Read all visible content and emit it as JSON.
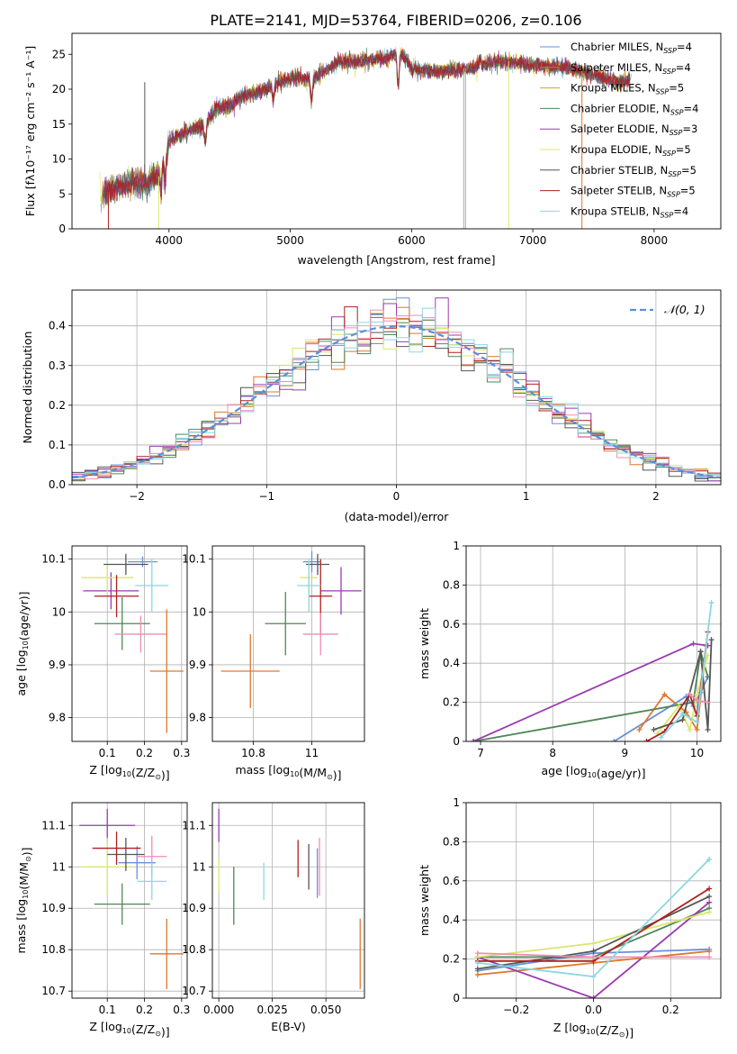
{
  "figure": {
    "title": "PLATE=2141, MJD=53764, FIBERID=0206, z=0.106"
  },
  "colors": [
    "#6a8fd8",
    "#e0772a",
    "#4f8657",
    "#9b3bb0",
    "#d8e86a",
    "#555555",
    "#b01f1f",
    "#f08cb4",
    "#8ad8e0"
  ],
  "chart_data": [
    {
      "id": "spectrum",
      "type": "line",
      "xlabel": "wavelength [Angstrom, rest frame]",
      "ylabel": "Flux [fλ10⁻¹⁷ erg cm⁻² s⁻¹ A⁻¹]",
      "xlim": [
        3200,
        8550
      ],
      "ylim": [
        0,
        28
      ],
      "xticks": [
        4000,
        5000,
        6000,
        7000,
        8000
      ],
      "yticks": [
        0,
        5,
        10,
        15,
        20,
        25
      ],
      "grid": false,
      "legend": {
        "position": "right",
        "entries": [
          {
            "base": "Chabrier MILES, N",
            "sub": "SSP",
            "tail": "=4",
            "color": "#6a8fd8"
          },
          {
            "base": "Salpeter MILES, N",
            "sub": "SSP",
            "tail": "=4",
            "color": "#e0772a"
          },
          {
            "base": "Kroupa MILES, N",
            "sub": "SSP",
            "tail": "=5",
            "color": "#d8a030"
          },
          {
            "base": "Chabrier ELODIE, N",
            "sub": "SSP",
            "tail": "=4",
            "color": "#4f8657"
          },
          {
            "base": "Salpeter ELODIE, N",
            "sub": "SSP",
            "tail": "=3",
            "color": "#9b3bb0"
          },
          {
            "base": "Kroupa ELODIE, N",
            "sub": "SSP",
            "tail": "=5",
            "color": "#d8e86a"
          },
          {
            "base": "Chabrier STELIB, N",
            "sub": "SSP",
            "tail": "=5",
            "color": "#555555"
          },
          {
            "base": "Salpeter STELIB, N",
            "sub": "SSP",
            "tail": "=5",
            "color": "#b01f1f"
          },
          {
            "base": "Kroupa STELIB, N",
            "sub": "SSP",
            "tail": "=4",
            "color": "#8ad8e0"
          }
        ]
      },
      "envelope": [
        [
          3430,
          4.5
        ],
        [
          3500,
          5.5
        ],
        [
          3600,
          6
        ],
        [
          3700,
          6.5
        ],
        [
          3800,
          6.5
        ],
        [
          3900,
          7.5
        ],
        [
          3950,
          10
        ],
        [
          4000,
          12.5
        ],
        [
          4100,
          13.5
        ],
        [
          4300,
          15
        ],
        [
          4400,
          17.5
        ],
        [
          4500,
          17.5
        ],
        [
          4600,
          19
        ],
        [
          4800,
          20
        ],
        [
          4900,
          21
        ],
        [
          5000,
          21.5
        ],
        [
          5200,
          21.5
        ],
        [
          5400,
          24
        ],
        [
          5600,
          24
        ],
        [
          5800,
          24.5
        ],
        [
          5900,
          25.5
        ],
        [
          6000,
          23
        ],
        [
          6200,
          22.5
        ],
        [
          6500,
          23
        ],
        [
          6700,
          24
        ],
        [
          7000,
          23.5
        ],
        [
          7300,
          23
        ],
        [
          7500,
          22
        ],
        [
          7700,
          21
        ],
        [
          7800,
          21.5
        ]
      ]
    },
    {
      "id": "residuals",
      "type": "histogram",
      "xlabel": "(data-model)/error",
      "ylabel": "Normed distribution",
      "xlim": [
        -2.5,
        2.5
      ],
      "ylim": [
        0,
        0.49
      ],
      "xticks": [
        -2,
        -1,
        0,
        1,
        2
      ],
      "xtick_labels": [
        "−2",
        "−1",
        "0",
        "1",
        "2"
      ],
      "yticks": [
        0,
        0.1,
        0.2,
        0.3,
        0.4
      ],
      "yticklabels": [
        "0.0",
        "0.1",
        "0.2",
        "0.3",
        "0.4"
      ],
      "bin_width": 0.1,
      "grid": true,
      "legend": {
        "position": "top-right",
        "entry": "𝒩(0, 1)"
      }
    },
    {
      "id": "age_vs_Z",
      "type": "errorbar",
      "xlabel": "Z [log10(Z/Z⊙)]",
      "ylabel": "age  [log10(age/yr)]",
      "xlim": [
        0.005,
        0.315
      ],
      "ylim": [
        9.755,
        10.125
      ],
      "xticks": [
        0.1,
        0.2,
        0.3
      ],
      "yticks": [
        9.8,
        9.9,
        10.0,
        10.1
      ],
      "points": [
        {
          "x": 0.195,
          "y": 10.095,
          "xerr": 0.04,
          "yerr": 0.01,
          "color": "#6a8fd8"
        },
        {
          "x": 0.26,
          "y": 9.888,
          "xerr": 0.045,
          "yerr": 0.117,
          "color": "#e0772a"
        },
        {
          "x": 0.14,
          "y": 9.978,
          "xerr": 0.075,
          "yerr": 0.05,
          "color": "#4f8657"
        },
        {
          "x": 0.11,
          "y": 10.04,
          "xerr": 0.075,
          "yerr": 0.035,
          "color": "#9b3bb0"
        },
        {
          "x": 0.1,
          "y": 10.065,
          "xerr": 0.07,
          "yerr": 0.03,
          "color": "#d8e86a"
        },
        {
          "x": 0.15,
          "y": 10.09,
          "xerr": 0.06,
          "yerr": 0.02,
          "color": "#555555"
        },
        {
          "x": 0.125,
          "y": 10.03,
          "xerr": 0.06,
          "yerr": 0.04,
          "color": "#b01f1f"
        },
        {
          "x": 0.19,
          "y": 9.958,
          "xerr": 0.07,
          "yerr": 0.035,
          "color": "#f08cb4"
        },
        {
          "x": 0.22,
          "y": 10.05,
          "xerr": 0.045,
          "yerr": 0.05,
          "color": "#8ad8e0"
        }
      ]
    },
    {
      "id": "age_vs_mass",
      "type": "errorbar",
      "xlabel": "mass [log10(M/M⊙)]",
      "ylabel": "",
      "xlim": [
        10.66,
        11.18
      ],
      "ylim": [
        9.755,
        10.125
      ],
      "xticks": [
        10.8,
        11.0
      ],
      "yticks": [
        9.8,
        9.9,
        10.0,
        10.1
      ],
      "points": [
        {
          "x": 11.0,
          "y": 10.095,
          "xerr": 0.03,
          "yerr": 0.02,
          "color": "#6a8fd8"
        },
        {
          "x": 10.79,
          "y": 9.888,
          "xerr": 0.1,
          "yerr": 0.07,
          "color": "#e0772a"
        },
        {
          "x": 10.91,
          "y": 9.978,
          "xerr": 0.07,
          "yerr": 0.06,
          "color": "#4f8657"
        },
        {
          "x": 11.1,
          "y": 10.04,
          "xerr": 0.07,
          "yerr": 0.045,
          "color": "#9b3bb0"
        },
        {
          "x": 10.99,
          "y": 10.065,
          "xerr": 0.03,
          "yerr": 0.03,
          "color": "#d8e86a"
        },
        {
          "x": 11.02,
          "y": 10.09,
          "xerr": 0.04,
          "yerr": 0.02,
          "color": "#555555"
        },
        {
          "x": 11.03,
          "y": 10.03,
          "xerr": 0.04,
          "yerr": 0.07,
          "color": "#b01f1f"
        },
        {
          "x": 11.03,
          "y": 9.958,
          "xerr": 0.06,
          "yerr": 0.04,
          "color": "#f08cb4"
        },
        {
          "x": 10.99,
          "y": 10.05,
          "xerr": 0.04,
          "yerr": 0.05,
          "color": "#8ad8e0"
        }
      ]
    },
    {
      "id": "mass_weight_vs_age",
      "type": "line",
      "xlabel": "age  [log10(age/yr)]",
      "ylabel": "mass weight",
      "xlim": [
        6.8,
        10.33
      ],
      "ylim": [
        0,
        1
      ],
      "xticks": [
        7,
        8,
        9,
        10
      ],
      "yticks": [
        0.0,
        0.2,
        0.4,
        0.6,
        0.8,
        1.0
      ],
      "series": [
        {
          "color": "#6a8fd8",
          "x": [
            8.85,
            9.85,
            9.95,
            10.05,
            10.15
          ],
          "y": [
            0.0,
            0.23,
            0.18,
            0.25,
            0.33
          ]
        },
        {
          "color": "#e0772a",
          "x": [
            9.2,
            9.55,
            9.85,
            10.0,
            10.13
          ],
          "y": [
            0.06,
            0.24,
            0.15,
            0.06,
            0.49
          ]
        },
        {
          "color": "#4f8657",
          "x": [
            6.9,
            9.95,
            10.05,
            10.15
          ],
          "y": [
            0.0,
            0.2,
            0.46,
            0.33
          ]
        },
        {
          "color": "#9b3bb0",
          "x": [
            6.9,
            9.95,
            10.15
          ],
          "y": [
            0.0,
            0.5,
            0.49
          ]
        },
        {
          "color": "#d8e86a",
          "x": [
            9.45,
            9.75,
            9.9,
            10.0,
            10.15
          ],
          "y": [
            0.04,
            0.18,
            0.06,
            0.24,
            0.44
          ]
        },
        {
          "color": "#555555",
          "x": [
            9.4,
            9.8,
            10.05,
            10.15,
            10.2
          ],
          "y": [
            0.06,
            0.11,
            0.46,
            0.06,
            0.52
          ]
        },
        {
          "color": "#b01f1f",
          "x": [
            9.3,
            9.55,
            9.9,
            10.0,
            10.15
          ],
          "y": [
            0.0,
            0.05,
            0.24,
            0.13,
            0.56
          ]
        },
        {
          "color": "#f08cb4",
          "x": [
            9.9,
            10.0,
            10.15
          ],
          "y": [
            0.24,
            0.21,
            0.2
          ]
        },
        {
          "color": "#8ad8e0",
          "x": [
            9.5,
            9.8,
            10.0,
            10.2
          ],
          "y": [
            0.02,
            0.14,
            0.1,
            0.71
          ]
        }
      ]
    },
    {
      "id": "mass_vs_Z",
      "type": "errorbar",
      "xlabel": "Z [log10(Z/Z⊙)]",
      "ylabel": "mass [log10(M/M⊙)]",
      "xlim": [
        0.005,
        0.315
      ],
      "ylim": [
        10.683,
        11.155
      ],
      "xticks": [
        0.1,
        0.2,
        0.3
      ],
      "yticks": [
        10.7,
        10.8,
        10.9,
        11.0,
        11.1
      ],
      "points": [
        {
          "x": 0.18,
          "y": 11.01,
          "xerr": 0.05,
          "yerr": 0.04,
          "color": "#6a8fd8"
        },
        {
          "x": 0.26,
          "y": 10.79,
          "xerr": 0.045,
          "yerr": 0.085,
          "color": "#e0772a"
        },
        {
          "x": 0.14,
          "y": 10.91,
          "xerr": 0.075,
          "yerr": 0.05,
          "color": "#4f8657"
        },
        {
          "x": 0.1,
          "y": 11.1,
          "xerr": 0.075,
          "yerr": 0.04,
          "color": "#9b3bb0"
        },
        {
          "x": 0.1,
          "y": 11.0,
          "xerr": 0.07,
          "yerr": 0.07,
          "color": "#d8e86a"
        },
        {
          "x": 0.15,
          "y": 11.03,
          "xerr": 0.05,
          "yerr": 0.04,
          "color": "#555555"
        },
        {
          "x": 0.125,
          "y": 11.045,
          "xerr": 0.065,
          "yerr": 0.04,
          "color": "#b01f1f"
        },
        {
          "x": 0.22,
          "y": 11.025,
          "xerr": 0.04,
          "yerr": 0.05,
          "color": "#f08cb4"
        },
        {
          "x": 0.22,
          "y": 10.965,
          "xerr": 0.04,
          "yerr": 0.045,
          "color": "#8ad8e0"
        }
      ]
    },
    {
      "id": "mass_vs_EBV",
      "type": "errorbar",
      "xlabel": "E(B-V)",
      "ylabel": "",
      "xlim": [
        -0.003,
        0.068
      ],
      "ylim": [
        10.683,
        11.155
      ],
      "xticks": [
        0.0,
        0.025,
        0.05
      ],
      "xtick_labels": [
        "0.000",
        "0.025",
        "0.050"
      ],
      "yticks": [
        10.7,
        10.8,
        10.9,
        11.0,
        11.1
      ],
      "points": [
        {
          "x": 0.046,
          "y": 10.985,
          "xerr": 0,
          "yerr": 0.06,
          "color": "#6a8fd8"
        },
        {
          "x": 0.066,
          "y": 10.79,
          "xerr": 0,
          "yerr": 0.085,
          "color": "#e0772a"
        },
        {
          "x": 0.007,
          "y": 10.93,
          "xerr": 0,
          "yerr": 0.07,
          "color": "#4f8657"
        },
        {
          "x": 0.0,
          "y": 11.1,
          "xerr": 0,
          "yerr": 0.04,
          "color": "#9b3bb0"
        },
        {
          "x": 0.0,
          "y": 10.98,
          "xerr": 0,
          "yerr": 0.04,
          "color": "#d8e86a"
        },
        {
          "x": 0.042,
          "y": 11.0,
          "xerr": 0,
          "yerr": 0.055,
          "color": "#555555"
        },
        {
          "x": 0.037,
          "y": 11.02,
          "xerr": 0,
          "yerr": 0.045,
          "color": "#b01f1f"
        },
        {
          "x": 0.047,
          "y": 11.0,
          "xerr": 0,
          "yerr": 0.07,
          "color": "#f08cb4"
        },
        {
          "x": 0.021,
          "y": 10.965,
          "xerr": 0,
          "yerr": 0.045,
          "color": "#8ad8e0"
        }
      ]
    },
    {
      "id": "mass_weight_vs_Z",
      "type": "line",
      "xlabel": "Z [log10(Z/Z⊙)]",
      "ylabel": "mass weight",
      "xlim": [
        -0.33,
        0.33
      ],
      "ylim": [
        0,
        1
      ],
      "xticks": [
        -0.2,
        0.0,
        0.2
      ],
      "xtick_labels": [
        "−0.2",
        "0.0",
        "0.2"
      ],
      "yticks": [
        0.0,
        0.2,
        0.4,
        0.6,
        0.8,
        1.0
      ],
      "series": [
        {
          "color": "#6a8fd8",
          "x": [
            -0.3,
            0.0,
            0.3
          ],
          "y": [
            0.14,
            0.23,
            0.25
          ]
        },
        {
          "color": "#e0772a",
          "x": [
            -0.3,
            0.0,
            0.3
          ],
          "y": [
            0.12,
            0.18,
            0.24
          ]
        },
        {
          "color": "#4f8657",
          "x": [
            -0.3,
            0.0,
            0.3
          ],
          "y": [
            0.21,
            0.21,
            0.46
          ]
        },
        {
          "color": "#9b3bb0",
          "x": [
            -0.3,
            0.0,
            0.3
          ],
          "y": [
            0.21,
            0.0,
            0.49
          ]
        },
        {
          "color": "#d8e86a",
          "x": [
            -0.3,
            0.0,
            0.3
          ],
          "y": [
            0.21,
            0.28,
            0.44
          ]
        },
        {
          "color": "#555555",
          "x": [
            -0.3,
            0.0,
            0.3
          ],
          "y": [
            0.15,
            0.24,
            0.52
          ]
        },
        {
          "color": "#b01f1f",
          "x": [
            -0.3,
            0.0,
            0.3
          ],
          "y": [
            0.19,
            0.19,
            0.56
          ]
        },
        {
          "color": "#f08cb4",
          "x": [
            -0.3,
            0.0,
            0.3
          ],
          "y": [
            0.23,
            0.21,
            0.21
          ]
        },
        {
          "color": "#8ad8e0",
          "x": [
            -0.3,
            0.0,
            0.3
          ],
          "y": [
            0.18,
            0.11,
            0.71
          ]
        }
      ]
    }
  ]
}
